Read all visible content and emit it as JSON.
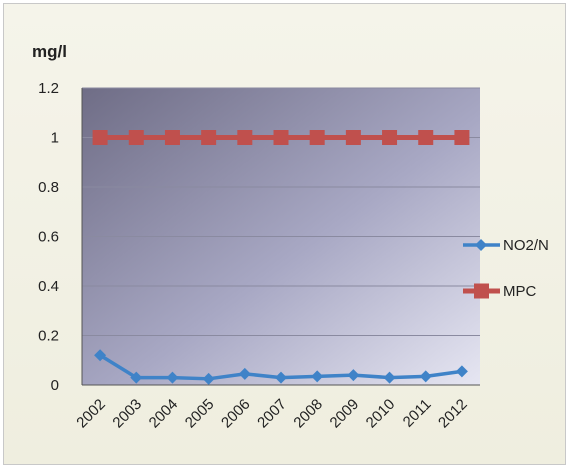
{
  "chart_data": {
    "type": "line",
    "ylabel": "mg/l",
    "categories": [
      "2002",
      "2003",
      "2004",
      "2005",
      "2006",
      "2007",
      "2008",
      "2009",
      "2010",
      "2011",
      "2012"
    ],
    "ylim": [
      0,
      1.2
    ],
    "yticks": [
      "0",
      "0.2",
      "0.4",
      "0.6",
      "0.8",
      "1",
      "1.2"
    ],
    "grid": true,
    "legend_position": "right",
    "series": [
      {
        "name": "NO2/N",
        "color": "#3f83c8",
        "marker": "diamond",
        "values": [
          0.12,
          0.03,
          0.03,
          0.025,
          0.045,
          0.03,
          0.035,
          0.04,
          0.03,
          0.035,
          0.055
        ]
      },
      {
        "name": "MPC",
        "color": "#c0504d",
        "marker": "square",
        "values": [
          1,
          1,
          1,
          1,
          1,
          1,
          1,
          1,
          1,
          1,
          1
        ]
      }
    ]
  }
}
